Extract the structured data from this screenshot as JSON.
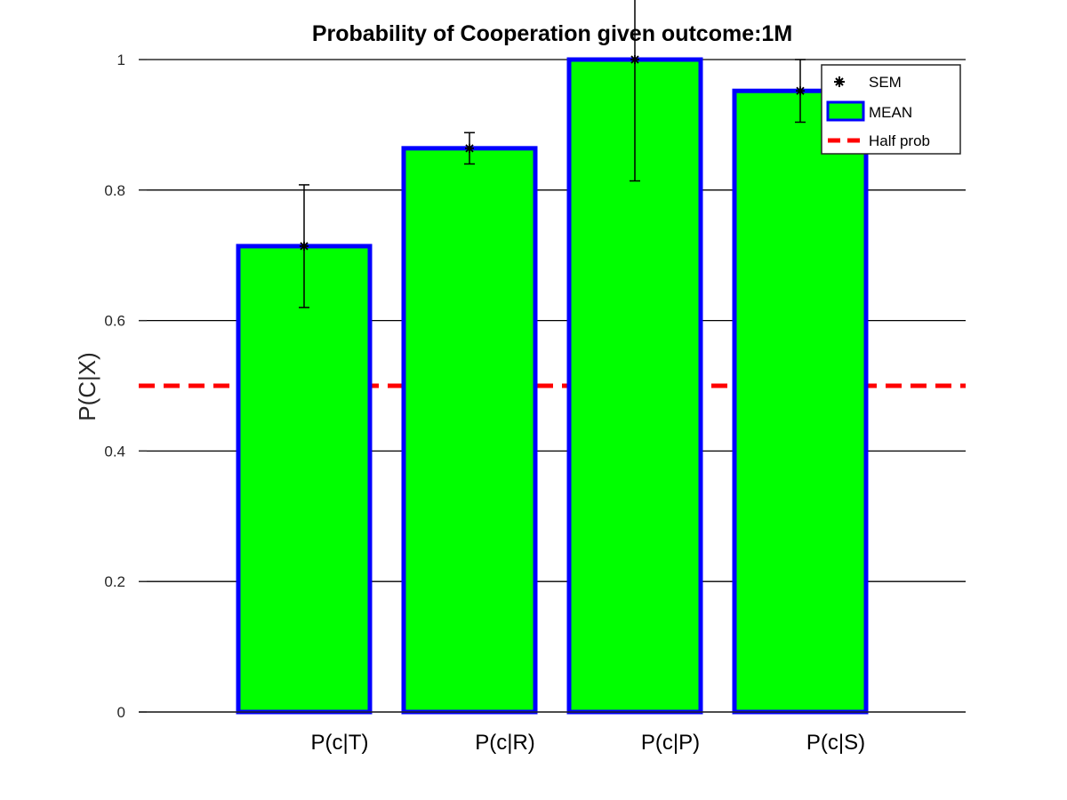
{
  "chart_data": {
    "type": "bar",
    "title": "Probability of Cooperation given outcome:1M",
    "xlabel": "",
    "ylabel": "P(C|X)",
    "categories": [
      "P(c|T)",
      "P(c|R)",
      "P(c|P)",
      "P(c|S)"
    ],
    "series": [
      {
        "name": "MEAN",
        "values": [
          0.714,
          0.864,
          1.0,
          0.952
        ],
        "sem": [
          0.094,
          0.024,
          0.186,
          0.048
        ]
      }
    ],
    "reference_line": {
      "name": "Half prob",
      "value": 0.5
    },
    "ylim": [
      0,
      1
    ],
    "yticks": [
      0,
      0.2,
      0.4,
      0.6,
      0.8,
      1
    ],
    "ytick_labels": [
      "0",
      "0.2",
      "0.4",
      "0.6",
      "0.8",
      "1"
    ],
    "grid": "horizontal",
    "legend": {
      "placement": "top-right",
      "entries": [
        "SEM",
        "MEAN",
        "Half prob"
      ]
    },
    "colors": {
      "bar_fill": "#00ff00",
      "bar_edge": "#0000ff",
      "error_bar": "#000000",
      "reference_line": "#ff0000",
      "grid": "#000000"
    }
  }
}
